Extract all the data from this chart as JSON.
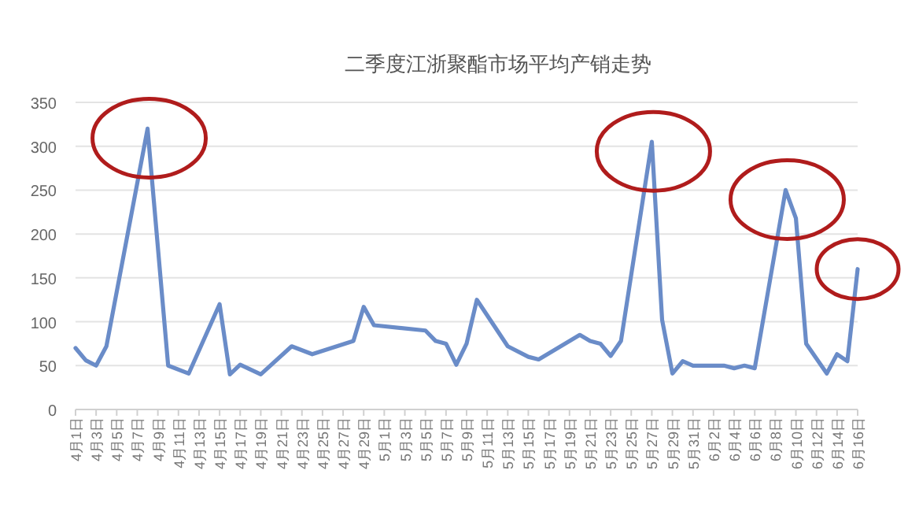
{
  "chart_data": {
    "type": "line",
    "title": "二季度江浙聚酯市场平均产销走势",
    "xlim": [
      "--04-01",
      "--06-16"
    ],
    "xticks": [
      {
        "value": "--04-01",
        "label": "4月1日"
      },
      {
        "value": "--04-03",
        "label": "4月3日"
      },
      {
        "value": "--04-05",
        "label": "4月5日"
      },
      {
        "value": "--04-07",
        "label": "4月7日"
      },
      {
        "value": "--04-09",
        "label": "4月9日"
      },
      {
        "value": "--04-11",
        "label": "4月11日"
      },
      {
        "value": "--04-13",
        "label": "4月13日"
      },
      {
        "value": "--04-15",
        "label": "4月15日"
      },
      {
        "value": "--04-17",
        "label": "4月17日"
      },
      {
        "value": "--04-19",
        "label": "4月19日"
      },
      {
        "value": "--04-21",
        "label": "4月21日"
      },
      {
        "value": "--04-23",
        "label": "4月23日"
      },
      {
        "value": "--04-25",
        "label": "4月25日"
      },
      {
        "value": "--04-27",
        "label": "4月27日"
      },
      {
        "value": "--04-29",
        "label": "4月29日"
      },
      {
        "value": "--05-01",
        "label": "5月1日"
      },
      {
        "value": "--05-03",
        "label": "5月3日"
      },
      {
        "value": "--05-05",
        "label": "5月5日"
      },
      {
        "value": "--05-07",
        "label": "5月7日"
      },
      {
        "value": "--05-09",
        "label": "5月9日"
      },
      {
        "value": "--05-11",
        "label": "5月11日"
      },
      {
        "value": "--05-13",
        "label": "5月13日"
      },
      {
        "value": "--05-15",
        "label": "5月15日"
      },
      {
        "value": "--05-17",
        "label": "5月17日"
      },
      {
        "value": "--05-19",
        "label": "5月19日"
      },
      {
        "value": "--05-21",
        "label": "5月21日"
      },
      {
        "value": "--05-23",
        "label": "5月23日"
      },
      {
        "value": "--05-25",
        "label": "5月25日"
      },
      {
        "value": "--05-27",
        "label": "5月27日"
      },
      {
        "value": "--05-29",
        "label": "5月29日"
      },
      {
        "value": "--05-31",
        "label": "5月31日"
      },
      {
        "value": "--06-02",
        "label": "6月2日"
      },
      {
        "value": "--06-04",
        "label": "6月4日"
      },
      {
        "value": "--06-06",
        "label": "6月6日"
      },
      {
        "value": "--06-08",
        "label": "6月8日"
      },
      {
        "value": "--06-10",
        "label": "6月10日"
      },
      {
        "value": "--06-12",
        "label": "6月12日"
      },
      {
        "value": "--06-14",
        "label": "6月14日"
      },
      {
        "value": "--06-16",
        "label": "6月16日"
      }
    ],
    "ylim": [
      0,
      350
    ],
    "yticks": [
      0,
      50,
      100,
      150,
      200,
      250,
      300,
      350
    ],
    "grid": "y",
    "marker": "none",
    "line_style": "solid",
    "series": [
      {
        "color": "#6a8cc8",
        "x": [
          "--04-01",
          "--04-02",
          "--04-03",
          "--04-04",
          "--04-08",
          "--04-10",
          "--04-12",
          "--04-15",
          "--04-16",
          "--04-17",
          "--04-19",
          "--04-22",
          "--04-24",
          "--04-28",
          "--04-29",
          "--04-30",
          "--05-05",
          "--05-06",
          "--05-07",
          "--05-08",
          "--05-09",
          "--05-10",
          "--05-13",
          "--05-15",
          "--05-16",
          "--05-20",
          "--05-21",
          "--05-22",
          "--05-23",
          "--05-24",
          "--05-27",
          "--05-28",
          "--05-29",
          "--05-30",
          "--05-31",
          "--06-03",
          "--06-04",
          "--06-05",
          "--06-06",
          "--06-09",
          "--06-10",
          "--06-11",
          "--06-13",
          "--06-14",
          "--06-15",
          "--06-16"
        ],
        "values": [
          70,
          56,
          50,
          72,
          320,
          50,
          41,
          120,
          40,
          51,
          40,
          72,
          63,
          78,
          117,
          96,
          90,
          78,
          75,
          51,
          75,
          125,
          72,
          60,
          57,
          85,
          78,
          75,
          61,
          78,
          305,
          102,
          41,
          55,
          50,
          50,
          47,
          50,
          47,
          250,
          218,
          75,
          41,
          63,
          55,
          160
        ]
      }
    ]
  }
}
